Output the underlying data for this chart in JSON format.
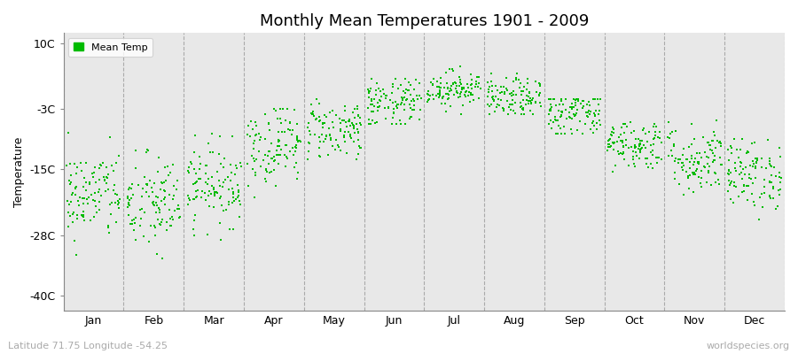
{
  "title": "Monthly Mean Temperatures 1901 - 2009",
  "ylabel": "Temperature",
  "xlabel_months": [
    "Jan",
    "Feb",
    "Mar",
    "Apr",
    "May",
    "Jun",
    "Jul",
    "Aug",
    "Sep",
    "Oct",
    "Nov",
    "Dec"
  ],
  "yticks": [
    -40,
    -28,
    -15,
    -3,
    10
  ],
  "ytick_labels": [
    "-40C",
    "-28C",
    "-15C",
    "-3C",
    "10C"
  ],
  "ylim": [
    -43,
    12
  ],
  "dot_color": "#00bb00",
  "bg_color": "#e8e8e8",
  "plot_bg_color": "#eeeeee",
  "fig_bg_color": "#ffffff",
  "legend_label": "Mean Temp",
  "footer_left": "Latitude 71.75 Longitude -54.25",
  "footer_right": "worldspecies.org",
  "n_years": 109,
  "month_means": [
    -20,
    -22,
    -18,
    -10,
    -7,
    -2,
    1,
    -1,
    -4,
    -10,
    -13,
    -16
  ],
  "month_stds": [
    4.5,
    5,
    4,
    4,
    3,
    2.5,
    1.8,
    2,
    2.5,
    2.5,
    3.5,
    3.5
  ],
  "month_mins": [
    -33,
    -37,
    -30,
    -22,
    -13,
    -6,
    -4,
    -4,
    -8,
    -16,
    -20,
    -25
  ],
  "month_maxs": [
    -7,
    -9,
    -8,
    -3,
    -1,
    3,
    6,
    4,
    -1,
    -4,
    -5,
    -9
  ],
  "seed": 42,
  "marker_size": 4,
  "dashed_line_color": "#aaaaaa",
  "dashed_line_lw": 0.8
}
